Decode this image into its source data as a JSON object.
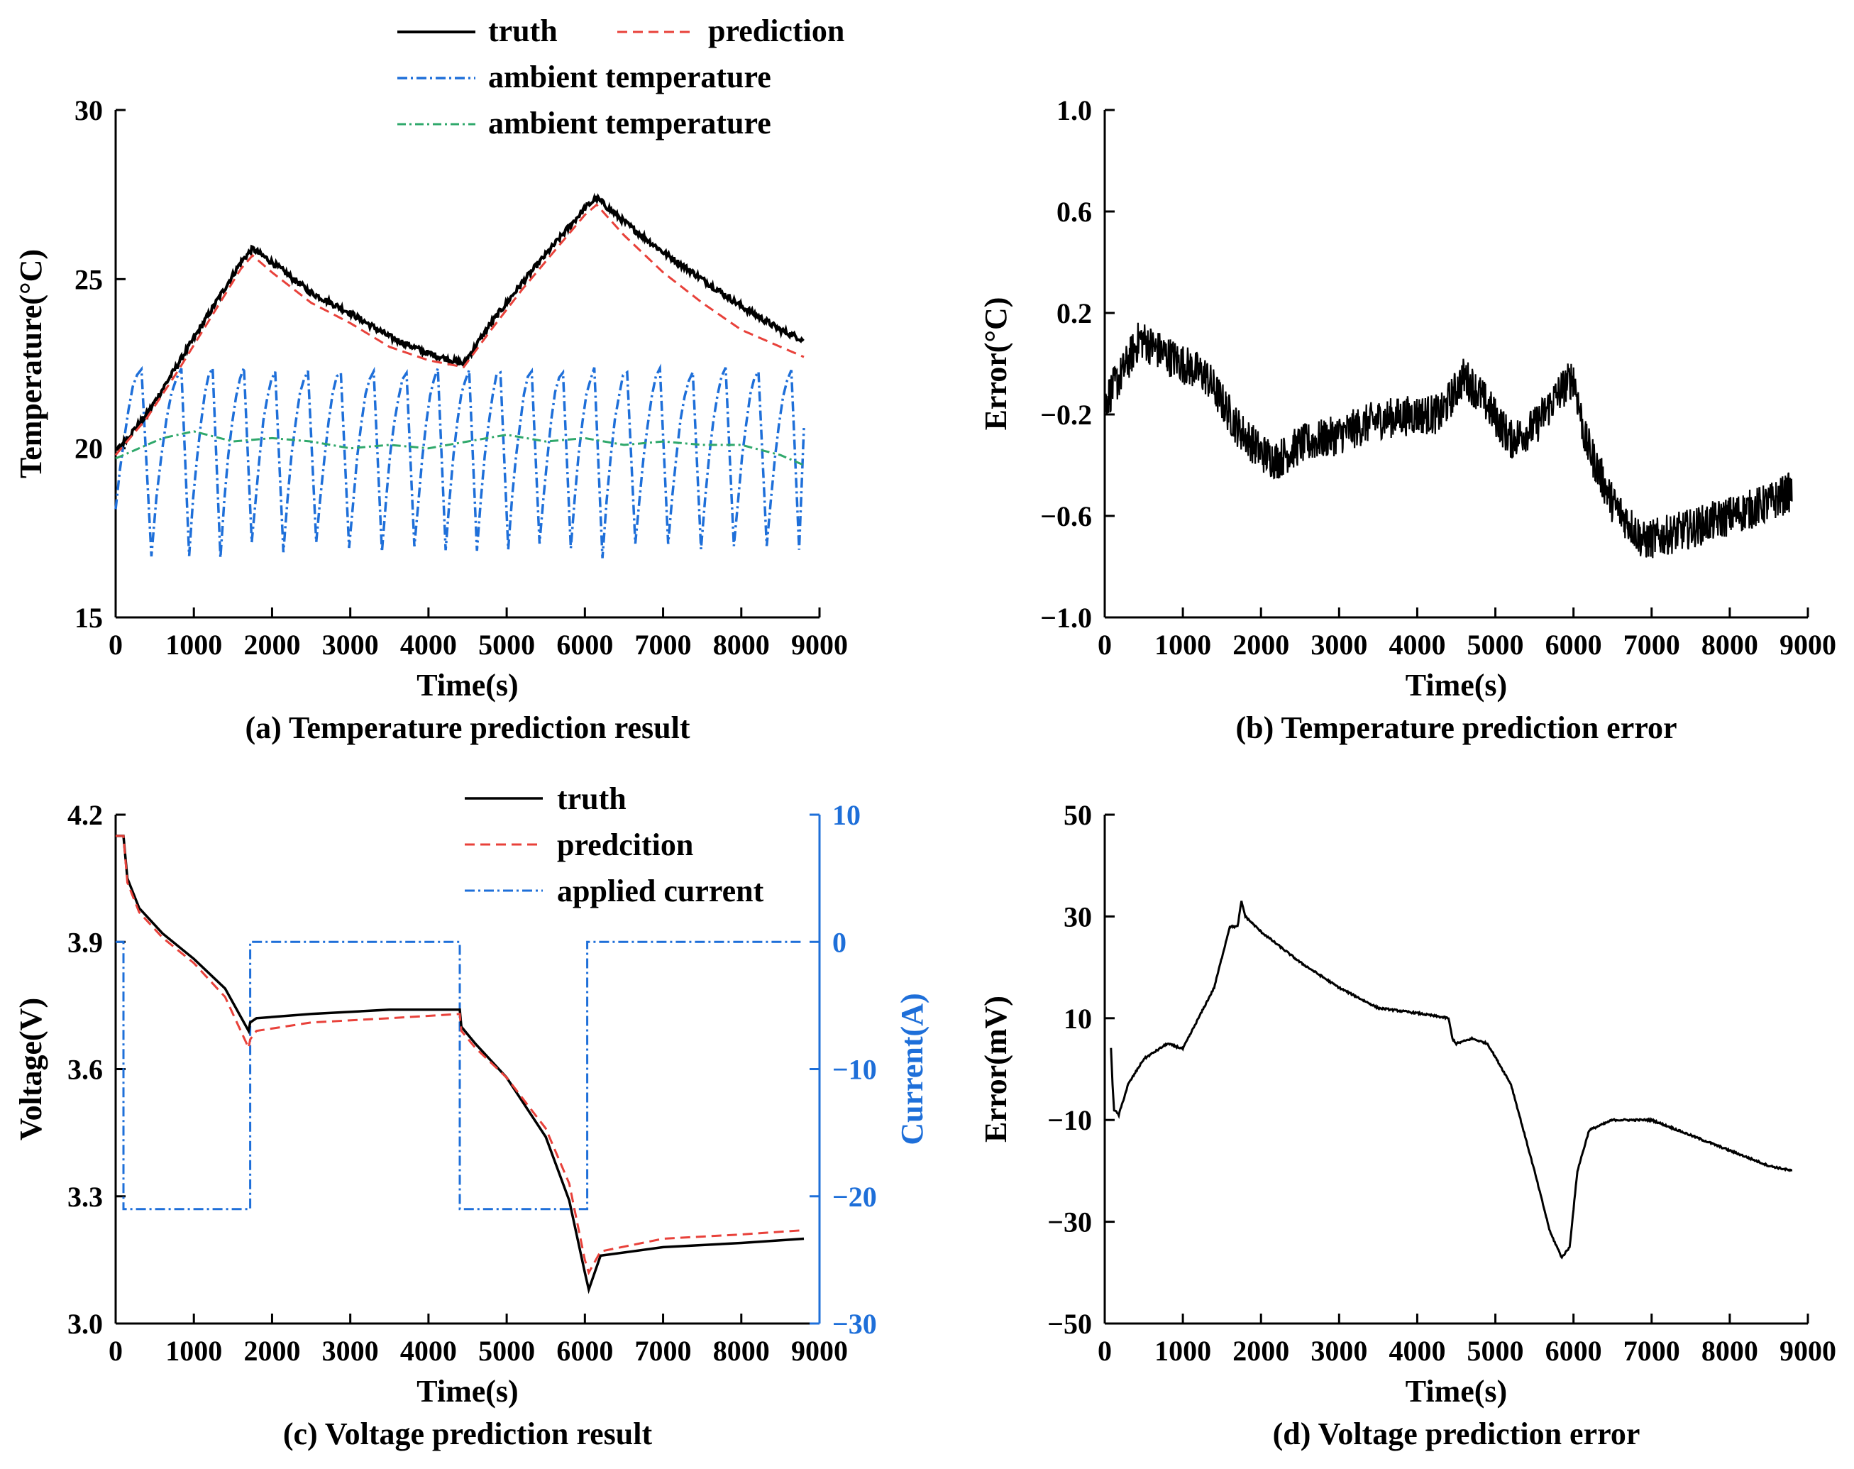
{
  "colors": {
    "truth": "#000000",
    "prediction": "#e8413a",
    "ambient1": "#1e6fd9",
    "ambient2": "#2fa86b",
    "current": "#1e6fd9",
    "axis": "#000000"
  },
  "chart_data": [
    {
      "id": "a",
      "type": "line",
      "caption": "(a) Temperature prediction result",
      "xlabel": "Time(s)",
      "ylabel": "Temperature(°C)",
      "xlim": [
        0,
        9000
      ],
      "ylim": [
        15,
        30
      ],
      "xticks": [
        0,
        1000,
        2000,
        3000,
        4000,
        5000,
        6000,
        7000,
        8000,
        9000
      ],
      "yticks": [
        15,
        20,
        25,
        30
      ],
      "legend": {
        "truth": "truth",
        "prediction": "prediction",
        "ambient1": "ambient temperature",
        "ambient2": "ambient temperature"
      },
      "series": [
        {
          "name": "truth",
          "x": [
            0,
            400,
            800,
            1200,
            1600,
            1750,
            2000,
            2500,
            3000,
            3500,
            4000,
            4450,
            4800,
            5200,
            5600,
            6000,
            6150,
            6500,
            7000,
            7500,
            8000,
            8500,
            8800
          ],
          "y": [
            19.9,
            21.0,
            22.5,
            24.0,
            25.5,
            25.9,
            25.5,
            24.6,
            24.0,
            23.3,
            22.8,
            22.5,
            23.7,
            24.9,
            26.0,
            27.1,
            27.4,
            26.7,
            25.8,
            25.0,
            24.2,
            23.5,
            23.2
          ]
        },
        {
          "name": "prediction",
          "x": [
            0,
            400,
            800,
            1200,
            1600,
            1750,
            2000,
            2500,
            3000,
            3500,
            4000,
            4450,
            4800,
            5200,
            5600,
            6000,
            6150,
            6500,
            7000,
            7500,
            8000,
            8500,
            8800
          ],
          "y": [
            19.8,
            20.9,
            22.3,
            23.8,
            25.3,
            25.7,
            25.2,
            24.3,
            23.7,
            23.0,
            22.6,
            22.4,
            23.5,
            24.7,
            25.8,
            26.9,
            27.2,
            26.3,
            25.2,
            24.3,
            23.5,
            23.0,
            22.7
          ]
        },
        {
          "name": "ambient1",
          "peaks_x": [
            330,
            840,
            1240,
            1640,
            2040,
            2460,
            2880,
            3300,
            3720,
            4120,
            4520,
            4920,
            5320,
            5720,
            6120,
            6540,
            6960,
            7380,
            7800,
            8220,
            8640
          ],
          "peak_y": 22.3,
          "trough_y": 17.0,
          "start": [
            0,
            18.2
          ],
          "end": [
            8800,
            20.6
          ]
        },
        {
          "name": "ambient2",
          "x": [
            0,
            600,
            1000,
            1500,
            2000,
            2500,
            3000,
            3500,
            4000,
            4500,
            5000,
            5500,
            6000,
            6500,
            7000,
            7500,
            8000,
            8500,
            8800
          ],
          "y": [
            19.7,
            20.3,
            20.5,
            20.2,
            20.3,
            20.2,
            20.0,
            20.1,
            20.0,
            20.2,
            20.4,
            20.2,
            20.3,
            20.1,
            20.2,
            20.1,
            20.1,
            19.8,
            19.5
          ]
        }
      ]
    },
    {
      "id": "b",
      "type": "line",
      "caption": "(b) Temperature prediction error",
      "xlabel": "Time(s)",
      "ylabel": "Error(°C)",
      "xlim": [
        0,
        9000
      ],
      "ylim": [
        -1.0,
        1.0
      ],
      "xticks": [
        0,
        1000,
        2000,
        3000,
        4000,
        5000,
        6000,
        7000,
        8000,
        9000
      ],
      "yticks": [
        -1.0,
        -0.6,
        -0.2,
        0.2,
        0.6,
        1.0
      ],
      "ytick_labels": [
        "−1.0",
        "−0.6",
        "−0.2",
        "0.2",
        "0.6",
        "1.0"
      ],
      "series": [
        {
          "name": "error",
          "x": [
            0,
            200,
            450,
            700,
            1000,
            1300,
            1700,
            2000,
            2200,
            2500,
            3000,
            3500,
            4000,
            4300,
            4600,
            4800,
            5200,
            5500,
            5800,
            6000,
            6150,
            6500,
            6900,
            7500,
            8000,
            8500,
            8800
          ],
          "y": [
            -0.15,
            -0.05,
            0.1,
            0.05,
            0.0,
            -0.05,
            -0.25,
            -0.35,
            -0.38,
            -0.32,
            -0.28,
            -0.22,
            -0.2,
            -0.2,
            -0.05,
            -0.12,
            -0.3,
            -0.25,
            -0.12,
            -0.05,
            -0.3,
            -0.55,
            -0.7,
            -0.65,
            -0.6,
            -0.55,
            -0.5
          ]
        }
      ]
    },
    {
      "id": "c",
      "type": "line",
      "caption": "(c) Voltage prediction result",
      "xlabel": "Time(s)",
      "ylabel": "Voltage(V)",
      "y2label": "Current(A)",
      "xlim": [
        0,
        9000
      ],
      "ylim": [
        3.0,
        4.2
      ],
      "y2lim": [
        -30,
        10
      ],
      "xticks": [
        0,
        1000,
        2000,
        3000,
        4000,
        5000,
        6000,
        7000,
        8000,
        9000
      ],
      "yticks": [
        3.0,
        3.3,
        3.6,
        3.9,
        4.2
      ],
      "ytick_labels": [
        "3.0",
        "3.3",
        "3.6",
        "3.9",
        "4.2"
      ],
      "y2ticks": [
        -30,
        -20,
        -10,
        0,
        10
      ],
      "y2tick_labels": [
        "−30",
        "−20",
        "−10",
        "0",
        "10"
      ],
      "legend": {
        "truth": "truth",
        "prediction": "predcition",
        "current": "applied current"
      },
      "series": [
        {
          "name": "truth",
          "x": [
            0,
            100,
            150,
            300,
            600,
            1000,
            1400,
            1700,
            1720,
            1800,
            2500,
            3500,
            4400,
            4420,
            4600,
            5000,
            5500,
            5800,
            6000,
            6050,
            6200,
            7000,
            8000,
            8800
          ],
          "y": [
            4.15,
            4.15,
            4.05,
            3.98,
            3.92,
            3.86,
            3.79,
            3.69,
            3.71,
            3.72,
            3.73,
            3.74,
            3.74,
            3.7,
            3.66,
            3.58,
            3.44,
            3.29,
            3.12,
            3.08,
            3.16,
            3.18,
            3.19,
            3.2
          ]
        },
        {
          "name": "prediction",
          "x": [
            0,
            100,
            150,
            300,
            600,
            1000,
            1400,
            1700,
            1720,
            1800,
            2500,
            3500,
            4400,
            4420,
            4600,
            5000,
            5500,
            5800,
            6000,
            6050,
            6200,
            7000,
            8000,
            8800
          ],
          "y": [
            4.15,
            4.15,
            4.04,
            3.97,
            3.91,
            3.85,
            3.77,
            3.65,
            3.67,
            3.69,
            3.71,
            3.72,
            3.73,
            3.69,
            3.65,
            3.58,
            3.46,
            3.33,
            3.15,
            3.12,
            3.17,
            3.2,
            3.21,
            3.22
          ]
        },
        {
          "name": "current",
          "axis": "y2",
          "x": [
            0,
            100,
            100,
            1720,
            1720,
            4400,
            4400,
            6030,
            6030,
            8800
          ],
          "y": [
            0,
            0,
            -21,
            -21,
            0,
            0,
            -21,
            -21,
            0,
            0
          ]
        }
      ]
    },
    {
      "id": "d",
      "type": "line",
      "caption": "(d) Voltage prediction error",
      "xlabel": "Time(s)",
      "ylabel": "Error(mV)",
      "xlim": [
        0,
        9000
      ],
      "ylim": [
        -50,
        50
      ],
      "xticks": [
        0,
        1000,
        2000,
        3000,
        4000,
        5000,
        6000,
        7000,
        8000,
        9000
      ],
      "yticks": [
        -50,
        -30,
        -10,
        10,
        30,
        50
      ],
      "ytick_labels": [
        "−50",
        "−30",
        "−10",
        "10",
        "30",
        "50"
      ],
      "series": [
        {
          "name": "error",
          "x": [
            80,
            100,
            120,
            180,
            300,
            500,
            800,
            1000,
            1200,
            1400,
            1600,
            1700,
            1750,
            1800,
            2000,
            2500,
            3000,
            3500,
            4000,
            4400,
            4450,
            4500,
            4700,
            4900,
            5200,
            5500,
            5700,
            5850,
            5950,
            6050,
            6200,
            6500,
            7000,
            7500,
            8000,
            8500,
            8800
          ],
          "y": [
            4,
            -3,
            -8,
            -9,
            -3,
            2,
            5,
            4,
            10,
            16,
            28,
            28,
            33,
            30,
            27,
            21,
            16,
            12,
            11,
            10,
            6,
            5,
            6,
            5,
            -3,
            -20,
            -32,
            -37,
            -35,
            -20,
            -12,
            -10,
            -10,
            -13,
            -16,
            -19,
            -20
          ]
        }
      ]
    }
  ]
}
